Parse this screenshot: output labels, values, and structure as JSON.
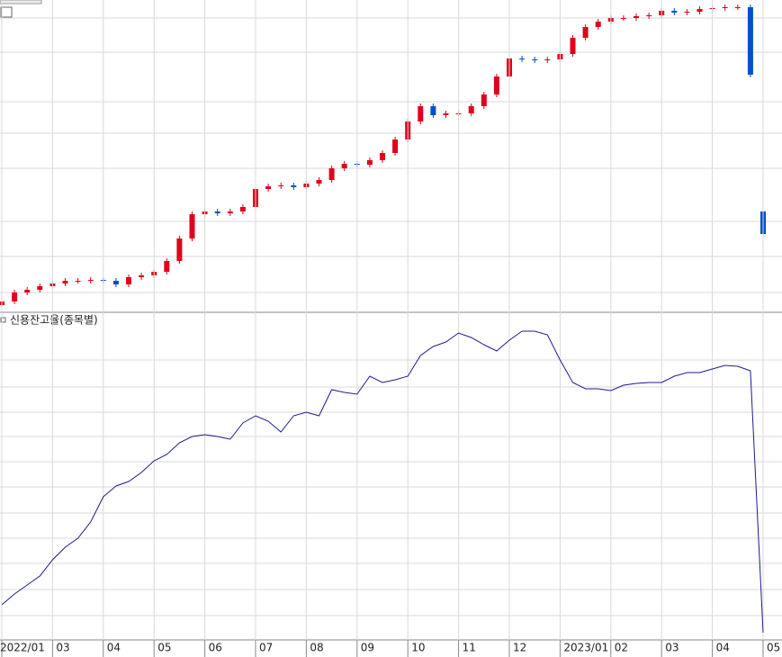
{
  "chart_data": [
    {
      "type": "candlestick",
      "up_color": "#e0001c",
      "down_color": "#0050c8",
      "ylim": [
        0,
        345
      ],
      "open": [
        6,
        10,
        20,
        23,
        27,
        30,
        33,
        33,
        34,
        33,
        29,
        37,
        39,
        43,
        55,
        80,
        107,
        110,
        108,
        110,
        115,
        135,
        138,
        139,
        137,
        141,
        145,
        158,
        163,
        162,
        167,
        175,
        190,
        210,
        227,
        217,
        219,
        219,
        227,
        240,
        260,
        280,
        279,
        278,
        279,
        285,
        303,
        315,
        321,
        325,
        325,
        327,
        328,
        333,
        331,
        332,
        335,
        336,
        337,
        337,
        110
      ],
      "high": [
        13,
        23,
        26,
        30,
        33,
        36,
        36,
        37,
        37,
        36,
        40,
        42,
        46,
        58,
        83,
        110,
        113,
        113,
        113,
        118,
        138,
        141,
        142,
        142,
        144,
        148,
        161,
        166,
        166,
        170,
        178,
        193,
        213,
        230,
        230,
        222,
        222,
        230,
        243,
        263,
        283,
        283,
        282,
        282,
        288,
        306,
        318,
        324,
        328,
        328,
        330,
        331,
        336,
        336,
        335,
        338,
        339,
        340,
        340,
        340,
        115
      ],
      "low": [
        3,
        7,
        17,
        20,
        24,
        27,
        30,
        30,
        30,
        26,
        26,
        34,
        36,
        40,
        52,
        77,
        104,
        105,
        105,
        107,
        112,
        132,
        135,
        134,
        134,
        138,
        142,
        155,
        159,
        159,
        164,
        172,
        187,
        207,
        214,
        214,
        216,
        216,
        224,
        237,
        257,
        276,
        275,
        275,
        276,
        282,
        300,
        312,
        318,
        322,
        322,
        324,
        325,
        328,
        328,
        329,
        332,
        333,
        334,
        259,
        60
      ],
      "close": [
        10,
        20,
        23,
        27,
        30,
        33,
        33,
        34,
        33,
        29,
        37,
        39,
        43,
        55,
        80,
        107,
        110,
        108,
        110,
        115,
        135,
        138,
        139,
        137,
        141,
        145,
        158,
        163,
        162,
        167,
        175,
        190,
        210,
        227,
        217,
        219,
        219,
        227,
        240,
        260,
        280,
        279,
        278,
        279,
        285,
        303,
        315,
        321,
        325,
        325,
        327,
        328,
        333,
        331,
        332,
        335,
        336,
        337,
        337,
        262,
        85
      ]
    },
    {
      "type": "line",
      "title": "신용잔고율(종목별)",
      "color": "#1c1c8c",
      "ylim": [
        0,
        360
      ],
      "categories": [
        "2022/01",
        null,
        null,
        null,
        "03",
        null,
        null,
        null,
        "04",
        null,
        null,
        null,
        "05",
        null,
        null,
        null,
        "06",
        null,
        null,
        null,
        "07",
        null,
        null,
        null,
        "08",
        null,
        null,
        null,
        "09",
        null,
        null,
        null,
        "10",
        null,
        null,
        null,
        "11",
        null,
        null,
        null,
        "12",
        null,
        null,
        null,
        "2023/01",
        null,
        null,
        null,
        "02",
        null,
        null,
        null,
        "03",
        null,
        null,
        null,
        "04",
        null,
        null,
        null,
        "05"
      ],
      "values": [
        38,
        50,
        60,
        70,
        88,
        102,
        112,
        130,
        158,
        170,
        175,
        185,
        198,
        205,
        218,
        225,
        227,
        225,
        222,
        240,
        248,
        242,
        230,
        248,
        252,
        248,
        277,
        274,
        272,
        292,
        285,
        288,
        292,
        315,
        325,
        330,
        340,
        335,
        327,
        320,
        332,
        342,
        342,
        338,
        310,
        285,
        278,
        278,
        276,
        282,
        284,
        285,
        285,
        292,
        296,
        296,
        300,
        304,
        303,
        298,
        7
      ]
    }
  ]
}
